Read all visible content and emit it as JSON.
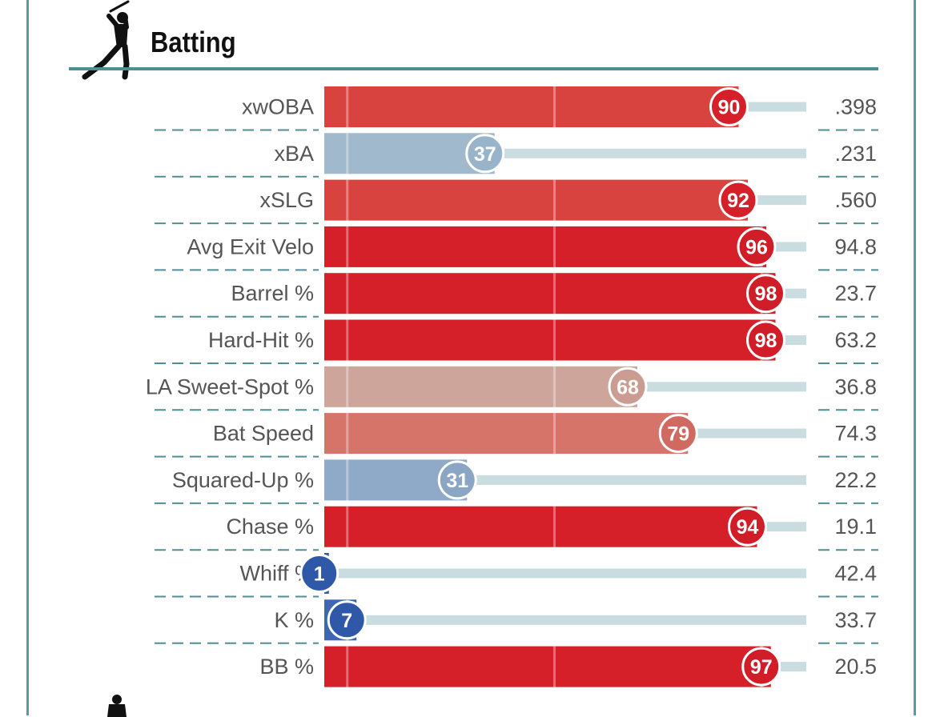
{
  "section": {
    "title": "Batting",
    "icon": "batter-icon",
    "bottom_icon": "batter-icon"
  },
  "colors": {
    "frame": "#5a9aa0",
    "divider": "#4f8e93",
    "track": "#c9dde0",
    "label": "#555555"
  },
  "chart_data": {
    "type": "bar",
    "orientation": "horizontal",
    "xlim": [
      0,
      100
    ],
    "grid": true,
    "categories": [
      "xwOBA",
      "xBA",
      "xSLG",
      "Avg Exit Velo",
      "Barrel %",
      "Hard-Hit %",
      "LA Sweet-Spot %",
      "Bat Speed",
      "Squared-Up %",
      "Chase %",
      "Whiff %",
      "K %",
      "BB %"
    ],
    "values": [
      90,
      37,
      92,
      96,
      98,
      98,
      68,
      79,
      31,
      94,
      1,
      7,
      97
    ],
    "stat_values": [
      ".398",
      ".231",
      ".560",
      "94.8",
      "23.7",
      "63.2",
      "36.8",
      "74.3",
      "22.2",
      "19.1",
      "42.4",
      "33.7",
      "20.5"
    ],
    "bar_colors": [
      "#d9433f",
      "#a0b9cc",
      "#d9433f",
      "#d52029",
      "#d52029",
      "#d52029",
      "#cda59a",
      "#d6746a",
      "#8eaac8",
      "#d52029",
      "#3359a8",
      "#3f66b2",
      "#d52029"
    ],
    "circle_colors": [
      "#d52029",
      "#98b4ca",
      "#d52029",
      "#d01d27",
      "#d01d27",
      "#d01d27",
      "#cb9c92",
      "#cf6a60",
      "#8aa6c4",
      "#d01d27",
      "#2f58a8",
      "#2f58a8",
      "#d01d27"
    ]
  }
}
